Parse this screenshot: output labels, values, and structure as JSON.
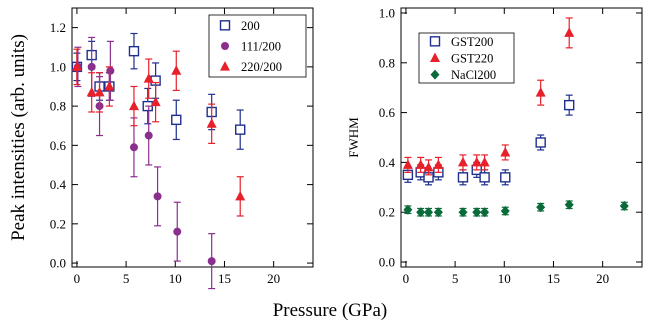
{
  "figure": {
    "shared_xlabel": "Pressure (GPa)"
  },
  "chart_data": [
    {
      "type": "scatter",
      "title": "",
      "xlabel": "",
      "ylabel": "Peak intensities (arb. units)",
      "xlim": [
        -0.5,
        24
      ],
      "ylim": [
        -0.02,
        1.3
      ],
      "xticks": [
        0,
        5,
        10,
        15,
        20
      ],
      "yticks": [
        0.0,
        0.2,
        0.4,
        0.6,
        0.8,
        1.0,
        1.2
      ],
      "ytick_labels": [
        "0.0",
        "0.2",
        "0.4",
        "0.6",
        "0.8",
        "1.0",
        "1.2"
      ],
      "grid": false,
      "legend_position": "top-right",
      "series": [
        {
          "name": "200",
          "marker": "open-square",
          "color": "#1f2f8f",
          "points": [
            {
              "x": 0.0,
              "y": 1.0,
              "err": 0.07
            },
            {
              "x": 1.5,
              "y": 1.06,
              "err": 0.07
            },
            {
              "x": 2.3,
              "y": 0.9,
              "err": 0.07
            },
            {
              "x": 3.3,
              "y": 0.9,
              "err": 0.07
            },
            {
              "x": 5.8,
              "y": 1.08,
              "err": 0.09
            },
            {
              "x": 7.2,
              "y": 0.8,
              "err": 0.09
            },
            {
              "x": 8.0,
              "y": 0.93,
              "err": 0.09
            },
            {
              "x": 10.1,
              "y": 0.73,
              "err": 0.1
            },
            {
              "x": 13.7,
              "y": 0.77,
              "err": 0.09
            },
            {
              "x": 16.6,
              "y": 0.68,
              "err": 0.1
            }
          ]
        },
        {
          "name": "111/200",
          "marker": "filled-circle",
          "color": "#8b2f8f",
          "points": [
            {
              "x": 0.1,
              "y": 1.0,
              "err": 0.1
            },
            {
              "x": 1.5,
              "y": 1.0,
              "err": 0.15
            },
            {
              "x": 2.3,
              "y": 0.8,
              "err": 0.15
            },
            {
              "x": 3.4,
              "y": 0.98,
              "err": 0.15
            },
            {
              "x": 5.8,
              "y": 0.59,
              "err": 0.15
            },
            {
              "x": 7.3,
              "y": 0.65,
              "err": 0.15
            },
            {
              "x": 8.2,
              "y": 0.34,
              "err": 0.15
            },
            {
              "x": 10.2,
              "y": 0.16,
              "err": 0.15
            },
            {
              "x": 13.7,
              "y": 0.01,
              "err": 0.14
            }
          ]
        },
        {
          "name": "220/200",
          "marker": "filled-triangle",
          "color": "#e8202a",
          "points": [
            {
              "x": 0.0,
              "y": 1.0,
              "err": 0.09
            },
            {
              "x": 1.5,
              "y": 0.87,
              "err": 0.1
            },
            {
              "x": 2.3,
              "y": 0.87,
              "err": 0.1
            },
            {
              "x": 3.3,
              "y": 0.9,
              "err": 0.1
            },
            {
              "x": 5.8,
              "y": 0.8,
              "err": 0.1
            },
            {
              "x": 7.3,
              "y": 0.94,
              "err": 0.1
            },
            {
              "x": 8.0,
              "y": 0.82,
              "err": 0.1
            },
            {
              "x": 10.1,
              "y": 0.98,
              "err": 0.1
            },
            {
              "x": 13.7,
              "y": 0.71,
              "err": 0.1
            },
            {
              "x": 16.6,
              "y": 0.34,
              "err": 0.1
            }
          ]
        }
      ]
    },
    {
      "type": "scatter",
      "title": "",
      "xlabel": "",
      "ylabel": "FWHM",
      "xlim": [
        -0.5,
        24
      ],
      "ylim": [
        -0.02,
        1.02
      ],
      "xticks": [
        0,
        5,
        10,
        15,
        20
      ],
      "yticks": [
        0.0,
        0.2,
        0.4,
        0.6,
        0.8,
        1.0
      ],
      "ytick_labels": [
        "0.0",
        "0.2",
        "0.4",
        "0.6",
        "0.8",
        "1.0"
      ],
      "grid": false,
      "legend_position": "top-left",
      "series": [
        {
          "name": "GST200",
          "marker": "open-square",
          "color": "#1f2f8f",
          "points": [
            {
              "x": 0.2,
              "y": 0.35,
              "err": 0.03
            },
            {
              "x": 1.5,
              "y": 0.36,
              "err": 0.03
            },
            {
              "x": 2.3,
              "y": 0.34,
              "err": 0.03
            },
            {
              "x": 3.3,
              "y": 0.36,
              "err": 0.03
            },
            {
              "x": 5.8,
              "y": 0.34,
              "err": 0.03
            },
            {
              "x": 7.2,
              "y": 0.37,
              "err": 0.03
            },
            {
              "x": 8.0,
              "y": 0.34,
              "err": 0.03
            },
            {
              "x": 10.1,
              "y": 0.34,
              "err": 0.03
            },
            {
              "x": 13.7,
              "y": 0.48,
              "err": 0.03
            },
            {
              "x": 16.6,
              "y": 0.63,
              "err": 0.04
            }
          ]
        },
        {
          "name": "GST220",
          "marker": "filled-triangle",
          "color": "#e8202a",
          "points": [
            {
              "x": 0.2,
              "y": 0.39,
              "err": 0.03
            },
            {
              "x": 1.5,
              "y": 0.39,
              "err": 0.03
            },
            {
              "x": 2.3,
              "y": 0.38,
              "err": 0.03
            },
            {
              "x": 3.3,
              "y": 0.39,
              "err": 0.03
            },
            {
              "x": 5.8,
              "y": 0.4,
              "err": 0.03
            },
            {
              "x": 7.2,
              "y": 0.4,
              "err": 0.03
            },
            {
              "x": 8.0,
              "y": 0.4,
              "err": 0.03
            },
            {
              "x": 10.1,
              "y": 0.44,
              "err": 0.03
            },
            {
              "x": 13.7,
              "y": 0.68,
              "err": 0.05
            },
            {
              "x": 16.6,
              "y": 0.92,
              "err": 0.06
            }
          ]
        },
        {
          "name": "NaCl200",
          "marker": "filled-diamond",
          "color": "#0a6b3a",
          "points": [
            {
              "x": 0.2,
              "y": 0.21,
              "err": 0.015
            },
            {
              "x": 1.5,
              "y": 0.2,
              "err": 0.015
            },
            {
              "x": 2.3,
              "y": 0.2,
              "err": 0.015
            },
            {
              "x": 3.3,
              "y": 0.2,
              "err": 0.015
            },
            {
              "x": 5.8,
              "y": 0.2,
              "err": 0.015
            },
            {
              "x": 7.2,
              "y": 0.2,
              "err": 0.015
            },
            {
              "x": 8.0,
              "y": 0.2,
              "err": 0.015
            },
            {
              "x": 10.1,
              "y": 0.205,
              "err": 0.015
            },
            {
              "x": 13.7,
              "y": 0.22,
              "err": 0.015
            },
            {
              "x": 16.6,
              "y": 0.23,
              "err": 0.015
            },
            {
              "x": 22.2,
              "y": 0.225,
              "err": 0.015
            }
          ]
        }
      ]
    }
  ]
}
